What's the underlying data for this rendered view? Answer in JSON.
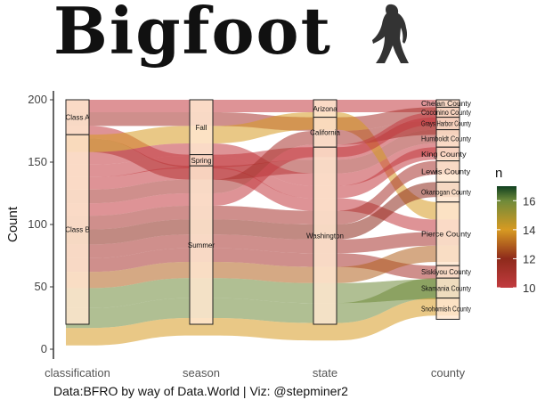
{
  "title": "Bigfoot",
  "caption": "Data:BFRO by way of Data.World | Viz: @stepminer2",
  "icons": {
    "logo": "bigfoot-silhouette-icon"
  },
  "chart_data": {
    "type": "alluvial",
    "ylabel": "Count",
    "ylim": [
      0,
      200
    ],
    "yticks": [
      0,
      50,
      100,
      150,
      200
    ],
    "axes": [
      "classification",
      "season",
      "state",
      "county"
    ],
    "strata": {
      "classification": [
        {
          "label": "Class A",
          "value": 28
        },
        {
          "label": "Class B",
          "value": 152
        }
      ],
      "season": [
        {
          "label": "Fall",
          "value": 44
        },
        {
          "label": "Spring",
          "value": 9
        },
        {
          "label": "Summer",
          "value": 127
        }
      ],
      "state": [
        {
          "label": "Arizona",
          "value": 14
        },
        {
          "label": "California",
          "value": 24
        },
        {
          "label": "Washington",
          "value": 142
        }
      ],
      "county": [
        {
          "label": "Chelan County",
          "value": 6
        },
        {
          "label": "Coconino County",
          "value": 8
        },
        {
          "label": "Grays Harbor County",
          "value": 10
        },
        {
          "label": "Humboldt County",
          "value": 14
        },
        {
          "label": "King County",
          "value": 11
        },
        {
          "label": "Lewis County",
          "value": 17
        },
        {
          "label": "Okanogan County",
          "value": 16
        },
        {
          "label": "Pierce County",
          "value": 51
        },
        {
          "label": "Siskiyou County",
          "value": 10
        },
        {
          "label": "Skamania County",
          "value": 16
        },
        {
          "label": "Snohomish County",
          "value": 17
        }
      ]
    },
    "flows": [
      {
        "path": [
          "Class A",
          "Fall",
          "Arizona",
          "Chelan County"
        ],
        "n": 10
      },
      {
        "path": [
          "Class A",
          "Fall",
          "California",
          "Coconino County"
        ],
        "n": 11
      },
      {
        "path": [
          "Class A",
          "Spring",
          "Washington",
          "Grays Harbor County"
        ],
        "n": 10
      },
      {
        "path": [
          "Class A",
          "Summer",
          "Washington",
          "Humboldt County"
        ],
        "n": 11
      },
      {
        "path": [
          "Class B",
          "Fall",
          "Arizona",
          "Pierce County"
        ],
        "n": 14
      },
      {
        "path": [
          "Class B",
          "Fall",
          "Washington",
          "Humboldt County"
        ],
        "n": 10
      },
      {
        "path": [
          "Class B",
          "Fall",
          "Washington",
          "King County"
        ],
        "n": 10
      },
      {
        "path": [
          "Class B",
          "Spring",
          "Washington",
          "Pierce County"
        ],
        "n": 10
      },
      {
        "path": [
          "Class B",
          "Summer",
          "California",
          "Coconino County"
        ],
        "n": 11
      },
      {
        "path": [
          "Class B",
          "Summer",
          "California",
          "Chelan County"
        ],
        "n": 10
      },
      {
        "path": [
          "Class B",
          "Summer",
          "Washington",
          "Lewis County"
        ],
        "n": 11
      },
      {
        "path": [
          "Class B",
          "Summer",
          "Washington",
          "Okanogan County"
        ],
        "n": 12
      },
      {
        "path": [
          "Class B",
          "Summer",
          "Washington",
          "Pierce County"
        ],
        "n": 11
      },
      {
        "path": [
          "Class B",
          "Summer",
          "Washington",
          "Siskiyou County"
        ],
        "n": 11
      },
      {
        "path": [
          "Class B",
          "Summer",
          "Washington",
          "Pierce County"
        ],
        "n": 13
      },
      {
        "path": [
          "Class B",
          "Summer",
          "Washington",
          "Siskiyou County"
        ],
        "n": 16
      },
      {
        "path": [
          "Class B",
          "Summer",
          "Washington",
          "Skamania County"
        ],
        "n": 16
      },
      {
        "path": [
          "Class B",
          "Summer",
          "Washington",
          "Snohomish County"
        ],
        "n": 14
      }
    ],
    "legend": {
      "title": "n",
      "ticks": [
        10,
        12,
        14,
        16
      ],
      "range": [
        10,
        17
      ],
      "placement": "right"
    },
    "colors": {
      "low": "#c23b3f",
      "mid_low": "#8e2a1b",
      "mid": "#d79a22",
      "mid_high": "#6f8a3a",
      "high": "#0f4020",
      "stratum_fill": "#ffe6cf"
    }
  }
}
